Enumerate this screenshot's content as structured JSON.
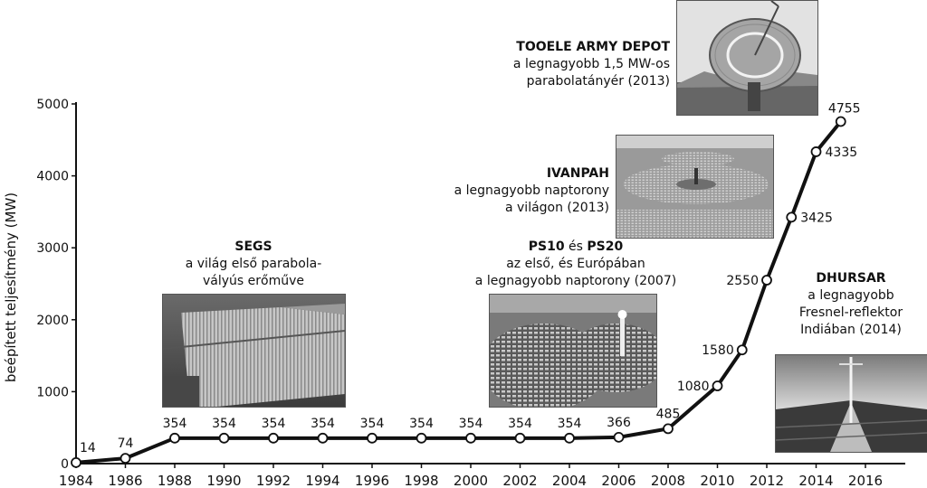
{
  "chart_data": {
    "type": "line",
    "ylabel": "beépített teljesítmény (MW)",
    "xlabel": "",
    "title": "",
    "ylim": [
      0,
      5000
    ],
    "xlim": [
      1984,
      2017.5
    ],
    "yticks": [
      0,
      1000,
      2000,
      3000,
      4000,
      5000
    ],
    "xticks": [
      1984,
      1986,
      1988,
      1990,
      1992,
      1994,
      1996,
      1998,
      2000,
      2002,
      2004,
      2006,
      2008,
      2010,
      2012,
      2014,
      2016
    ],
    "grid": false,
    "series": [
      {
        "points": [
          {
            "x": 1984,
            "y": 14,
            "label": "14"
          },
          {
            "x": 1986,
            "y": 74,
            "label": "74"
          },
          {
            "x": 1988,
            "y": 354,
            "label": "354"
          },
          {
            "x": 1990,
            "y": 354,
            "label": "354"
          },
          {
            "x": 1992,
            "y": 354,
            "label": "354"
          },
          {
            "x": 1994,
            "y": 354,
            "label": "354"
          },
          {
            "x": 1996,
            "y": 354,
            "label": "354"
          },
          {
            "x": 1998,
            "y": 354,
            "label": "354"
          },
          {
            "x": 2000,
            "y": 354,
            "label": "354"
          },
          {
            "x": 2002,
            "y": 354,
            "label": "354"
          },
          {
            "x": 2004,
            "y": 354,
            "label": "354"
          },
          {
            "x": 2006,
            "y": 366,
            "label": "366"
          },
          {
            "x": 2008,
            "y": 485,
            "label": "485"
          },
          {
            "x": 2010,
            "y": 1080,
            "label": "1080"
          },
          {
            "x": 2011,
            "y": 1580,
            "label": "1580"
          },
          {
            "x": 2012,
            "y": 2550,
            "label": "2550"
          },
          {
            "x": 2013,
            "y": 3425,
            "label": "3425"
          },
          {
            "x": 2014,
            "y": 4335,
            "label": "4335"
          },
          {
            "x": 2015,
            "y": 4755,
            "label": "4755"
          }
        ]
      }
    ],
    "annotations": [
      {
        "id": "segs",
        "title": "SEGS",
        "lines": [
          "a világ első parabola-",
          "vályús erőműve"
        ],
        "photo": "parabolic-trough-field"
      },
      {
        "id": "ps10",
        "title_parts": [
          "PS10",
          " és ",
          "PS20"
        ],
        "lines": [
          "az első, és Európában",
          "a legnagyobb naptorony (2007)"
        ],
        "photo": "solar-tower-heliostats"
      },
      {
        "id": "ivanpah",
        "title": "IVANPAH",
        "lines": [
          "a legnagyobb naptorony",
          "a világon (2013)"
        ],
        "photo": "desert-tower-field"
      },
      {
        "id": "tooele",
        "title": "TOOELE ARMY DEPOT",
        "lines": [
          "a legnagyobb 1,5 MW-os",
          "parabolatányér (2013)"
        ],
        "photo": "parabolic-dish"
      },
      {
        "id": "dhursar",
        "title": "DHURSAR",
        "lines": [
          "a legnagyobb",
          "Fresnel-reflektor",
          "Indiában (2014)"
        ],
        "photo": "fresnel-reflector"
      }
    ]
  }
}
